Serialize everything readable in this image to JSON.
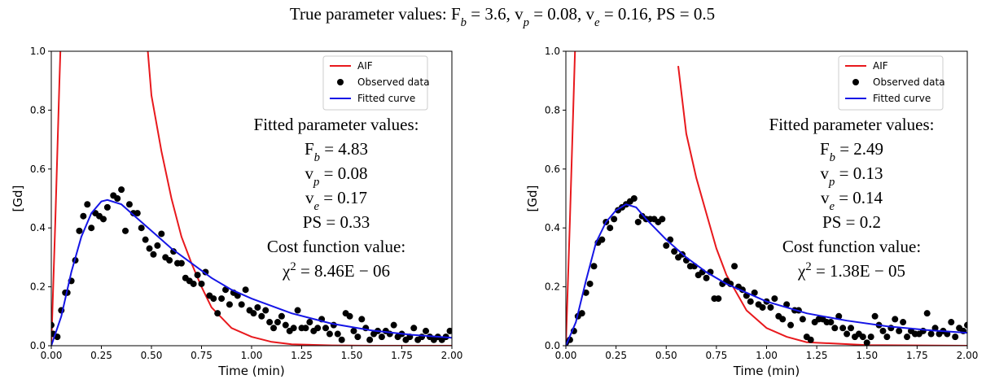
{
  "title": [
    {
      "text": "True parameter values: "
    },
    {
      "text": "F"
    },
    {
      "sub": "b"
    },
    {
      "text": " = 3.6, "
    },
    {
      "text": "v"
    },
    {
      "sub": "p"
    },
    {
      "text": " = 0.08, "
    },
    {
      "text": "v"
    },
    {
      "sub": "e"
    },
    {
      "text": " = 0.16, "
    },
    {
      "text": "PS"
    },
    {
      "text": " = 0.5"
    }
  ],
  "chart_data": [
    {
      "type": "line",
      "xlabel": "Time (min)",
      "ylabel": "[Gd]",
      "xlim": [
        0,
        2
      ],
      "ylim": [
        0,
        1
      ],
      "legend": "upper right",
      "xticks": [
        {
          "value": 0,
          "label": "0.00"
        },
        {
          "value": 0.25,
          "label": "0.25"
        },
        {
          "value": 0.5,
          "label": "0.50"
        },
        {
          "value": 0.75,
          "label": "0.75"
        },
        {
          "value": 1,
          "label": "1.00"
        },
        {
          "value": 1.25,
          "label": "1.25"
        },
        {
          "value": 1.5,
          "label": "1.50"
        },
        {
          "value": 1.75,
          "label": "1.75"
        },
        {
          "value": 2,
          "label": "2.00"
        }
      ],
      "yticks": [
        {
          "value": 0,
          "label": "0.0"
        },
        {
          "value": 0.2,
          "label": "0.2"
        },
        {
          "value": 0.4,
          "label": "0.4"
        },
        {
          "value": 0.6,
          "label": "0.6"
        },
        {
          "value": 0.8,
          "label": "0.8"
        },
        {
          "value": 1,
          "label": "1.0"
        }
      ],
      "annotation": [
        [
          {
            "text": "Fitted parameter values:"
          }
        ],
        [
          {
            "text": "F"
          },
          {
            "sub": "b"
          },
          {
            "text": " = 4.83"
          }
        ],
        [
          {
            "text": "v"
          },
          {
            "sub": "p"
          },
          {
            "text": " = 0.08"
          }
        ],
        [
          {
            "text": "v"
          },
          {
            "sub": "e"
          },
          {
            "text": " = 0.17"
          }
        ],
        [
          {
            "text": "PS = 0.33"
          }
        ],
        [
          {
            "text": "Cost function value:"
          }
        ],
        [
          {
            "text": "χ"
          },
          {
            "sup": "2"
          },
          {
            "text": " = 8.46E − 06"
          }
        ]
      ],
      "series": [
        {
          "name": "AIF",
          "type": "line",
          "color": "#e8191d",
          "x": [
            0,
            0.02,
            0.04,
            0.05,
            0.44,
            0.47,
            0.5,
            0.55,
            0.6,
            0.65,
            0.7,
            0.75,
            0.8,
            0.9,
            1.0,
            1.1,
            1.2,
            1.4,
            1.6,
            2.0
          ],
          "values": [
            0,
            0.42,
            0.88,
            1.1,
            null,
            1.1,
            0.85,
            0.66,
            0.5,
            0.37,
            0.28,
            0.2,
            0.13,
            0.06,
            0.03,
            0.013,
            0.005,
            0.001,
            0,
            0
          ]
        },
        {
          "name": "Observed data",
          "type": "scatter",
          "color": "#000000",
          "x": [
            0,
            0.01,
            0.03,
            0.05,
            0.07,
            0.08,
            0.1,
            0.12,
            0.14,
            0.16,
            0.18,
            0.2,
            0.22,
            0.24,
            0.26,
            0.28,
            0.31,
            0.33,
            0.35,
            0.37,
            0.39,
            0.41,
            0.43,
            0.45,
            0.47,
            0.49,
            0.51,
            0.53,
            0.55,
            0.57,
            0.59,
            0.61,
            0.63,
            0.65,
            0.67,
            0.69,
            0.71,
            0.73,
            0.75,
            0.77,
            0.79,
            0.81,
            0.83,
            0.85,
            0.87,
            0.89,
            0.91,
            0.93,
            0.95,
            0.97,
            0.99,
            1.01,
            1.03,
            1.05,
            1.07,
            1.09,
            1.11,
            1.13,
            1.15,
            1.17,
            1.19,
            1.21,
            1.23,
            1.25,
            1.27,
            1.29,
            1.31,
            1.33,
            1.35,
            1.37,
            1.39,
            1.41,
            1.43,
            1.45,
            1.47,
            1.49,
            1.51,
            1.53,
            1.55,
            1.57,
            1.59,
            1.61,
            1.63,
            1.65,
            1.67,
            1.69,
            1.71,
            1.73,
            1.75,
            1.77,
            1.79,
            1.81,
            1.83,
            1.85,
            1.87,
            1.89,
            1.91,
            1.93,
            1.95,
            1.97,
            1.99
          ],
          "values": [
            0.07,
            0.04,
            0.03,
            0.12,
            0.18,
            0.18,
            0.22,
            0.29,
            0.39,
            0.44,
            0.48,
            0.4,
            0.45,
            0.44,
            0.43,
            0.47,
            0.51,
            0.5,
            0.53,
            0.39,
            0.48,
            0.45,
            0.45,
            0.4,
            0.36,
            0.33,
            0.31,
            0.34,
            0.38,
            0.3,
            0.29,
            0.32,
            0.28,
            0.28,
            0.23,
            0.22,
            0.21,
            0.24,
            0.21,
            0.25,
            0.17,
            0.16,
            0.11,
            0.16,
            0.19,
            0.14,
            0.18,
            0.17,
            0.14,
            0.19,
            0.12,
            0.11,
            0.13,
            0.1,
            0.12,
            0.08,
            0.06,
            0.08,
            0.1,
            0.07,
            0.05,
            0.06,
            0.12,
            0.06,
            0.06,
            0.08,
            0.05,
            0.06,
            0.09,
            0.06,
            0.04,
            0.07,
            0.04,
            0.02,
            0.11,
            0.1,
            0.05,
            0.03,
            0.09,
            0.06,
            0.02,
            0.04,
            0.05,
            0.03,
            0.05,
            0.04,
            0.07,
            0.03,
            0.04,
            0.02,
            0.03,
            0.06,
            0.02,
            0.03,
            0.05,
            0.03,
            0.02,
            0.03,
            0.02,
            0.03,
            0.05
          ]
        },
        {
          "name": "Fitted curve",
          "type": "line",
          "color": "#1515e6",
          "x": [
            0,
            0.05,
            0.1,
            0.15,
            0.2,
            0.25,
            0.28,
            0.35,
            0.4,
            0.5,
            0.6,
            0.7,
            0.8,
            0.9,
            1.0,
            1.2,
            1.4,
            1.6,
            1.8,
            2.0
          ],
          "values": [
            0,
            0.1,
            0.25,
            0.37,
            0.45,
            0.49,
            0.495,
            0.48,
            0.45,
            0.39,
            0.33,
            0.28,
            0.23,
            0.19,
            0.16,
            0.11,
            0.075,
            0.052,
            0.037,
            0.027
          ]
        }
      ]
    },
    {
      "type": "line",
      "xlabel": "Time (min)",
      "ylabel": "[Gd]",
      "xlim": [
        0,
        2
      ],
      "ylim": [
        0,
        1
      ],
      "legend": "upper right",
      "xticks": [
        {
          "value": 0,
          "label": "0.00"
        },
        {
          "value": 0.25,
          "label": "0.25"
        },
        {
          "value": 0.5,
          "label": "0.50"
        },
        {
          "value": 0.75,
          "label": "0.75"
        },
        {
          "value": 1,
          "label": "1.00"
        },
        {
          "value": 1.25,
          "label": "1.25"
        },
        {
          "value": 1.5,
          "label": "1.50"
        },
        {
          "value": 1.75,
          "label": "1.75"
        },
        {
          "value": 2,
          "label": "2.00"
        }
      ],
      "yticks": [
        {
          "value": 0,
          "label": "0.0"
        },
        {
          "value": 0.2,
          "label": "0.2"
        },
        {
          "value": 0.4,
          "label": "0.4"
        },
        {
          "value": 0.6,
          "label": "0.6"
        },
        {
          "value": 0.8,
          "label": "0.8"
        },
        {
          "value": 1,
          "label": "1.0"
        }
      ],
      "annotation": [
        [
          {
            "text": "Fitted parameter values:"
          }
        ],
        [
          {
            "text": "F"
          },
          {
            "sub": "b"
          },
          {
            "text": " = 2.49"
          }
        ],
        [
          {
            "text": "v"
          },
          {
            "sub": "p"
          },
          {
            "text": " = 0.13"
          }
        ],
        [
          {
            "text": "v"
          },
          {
            "sub": "e"
          },
          {
            "text": " = 0.14"
          }
        ],
        [
          {
            "text": "PS = 0.2"
          }
        ],
        [
          {
            "text": "Cost function value:"
          }
        ],
        [
          {
            "text": "χ"
          },
          {
            "sup": "2"
          },
          {
            "text": " = 1.38E − 05"
          }
        ]
      ],
      "series": [
        {
          "name": "AIF",
          "type": "line",
          "color": "#e8191d",
          "x": [
            0,
            0.02,
            0.04,
            0.05,
            0.54,
            0.56,
            0.6,
            0.65,
            0.7,
            0.75,
            0.8,
            0.9,
            1.0,
            1.1,
            1.2,
            1.5,
            2.0
          ],
          "values": [
            0,
            0.42,
            0.88,
            1.1,
            null,
            0.95,
            0.72,
            0.57,
            0.45,
            0.33,
            0.24,
            0.12,
            0.06,
            0.03,
            0.012,
            0.002,
            0
          ]
        },
        {
          "name": "Observed data",
          "type": "scatter",
          "color": "#000000",
          "x": [
            0,
            0.02,
            0.04,
            0.06,
            0.08,
            0.1,
            0.12,
            0.14,
            0.16,
            0.18,
            0.2,
            0.22,
            0.24,
            0.26,
            0.28,
            0.3,
            0.32,
            0.34,
            0.36,
            0.38,
            0.4,
            0.42,
            0.44,
            0.46,
            0.48,
            0.5,
            0.52,
            0.54,
            0.56,
            0.58,
            0.6,
            0.62,
            0.64,
            0.66,
            0.68,
            0.7,
            0.72,
            0.74,
            0.76,
            0.78,
            0.8,
            0.82,
            0.84,
            0.86,
            0.88,
            0.9,
            0.92,
            0.94,
            0.96,
            0.98,
            1.0,
            1.02,
            1.04,
            1.06,
            1.08,
            1.1,
            1.12,
            1.14,
            1.16,
            1.18,
            1.2,
            1.22,
            1.24,
            1.26,
            1.28,
            1.3,
            1.32,
            1.34,
            1.36,
            1.38,
            1.4,
            1.42,
            1.44,
            1.46,
            1.48,
            1.5,
            1.52,
            1.54,
            1.56,
            1.58,
            1.6,
            1.62,
            1.64,
            1.66,
            1.68,
            1.7,
            1.72,
            1.74,
            1.76,
            1.78,
            1.8,
            1.82,
            1.84,
            1.86,
            1.88,
            1.9,
            1.92,
            1.94,
            1.96,
            1.98,
            2.0
          ],
          "values": [
            0.01,
            0.02,
            0.05,
            0.1,
            0.11,
            0.18,
            0.21,
            0.27,
            0.35,
            0.36,
            0.42,
            0.4,
            0.43,
            0.46,
            0.47,
            0.48,
            0.49,
            0.5,
            0.42,
            0.44,
            0.43,
            0.43,
            0.43,
            0.42,
            0.43,
            0.34,
            0.36,
            0.32,
            0.3,
            0.31,
            0.29,
            0.27,
            0.27,
            0.24,
            0.25,
            0.23,
            0.25,
            0.16,
            0.16,
            0.21,
            0.22,
            0.21,
            0.27,
            0.2,
            0.19,
            0.17,
            0.15,
            0.18,
            0.14,
            0.13,
            0.15,
            0.13,
            0.16,
            0.1,
            0.09,
            0.14,
            0.07,
            0.12,
            0.12,
            0.09,
            0.03,
            0.02,
            0.08,
            0.09,
            0.09,
            0.08,
            0.08,
            0.06,
            0.1,
            0.06,
            0.04,
            0.06,
            0.03,
            0.04,
            0.03,
            0.01,
            0.03,
            0.1,
            0.07,
            0.05,
            0.03,
            0.06,
            0.09,
            0.05,
            0.08,
            0.03,
            0.05,
            0.04,
            0.04,
            0.05,
            0.11,
            0.04,
            0.06,
            0.04,
            0.05,
            0.04,
            0.08,
            0.03,
            0.06,
            0.05,
            0.07
          ]
        },
        {
          "name": "Fitted curve",
          "type": "line",
          "color": "#1515e6",
          "x": [
            0,
            0.05,
            0.1,
            0.15,
            0.2,
            0.25,
            0.3,
            0.35,
            0.4,
            0.5,
            0.6,
            0.7,
            0.8,
            0.9,
            1.0,
            1.2,
            1.4,
            1.6,
            1.8,
            2.0
          ],
          "values": [
            0,
            0.08,
            0.22,
            0.35,
            0.42,
            0.46,
            0.48,
            0.47,
            0.43,
            0.36,
            0.3,
            0.25,
            0.21,
            0.18,
            0.15,
            0.11,
            0.085,
            0.066,
            0.053,
            0.044
          ]
        }
      ]
    }
  ]
}
